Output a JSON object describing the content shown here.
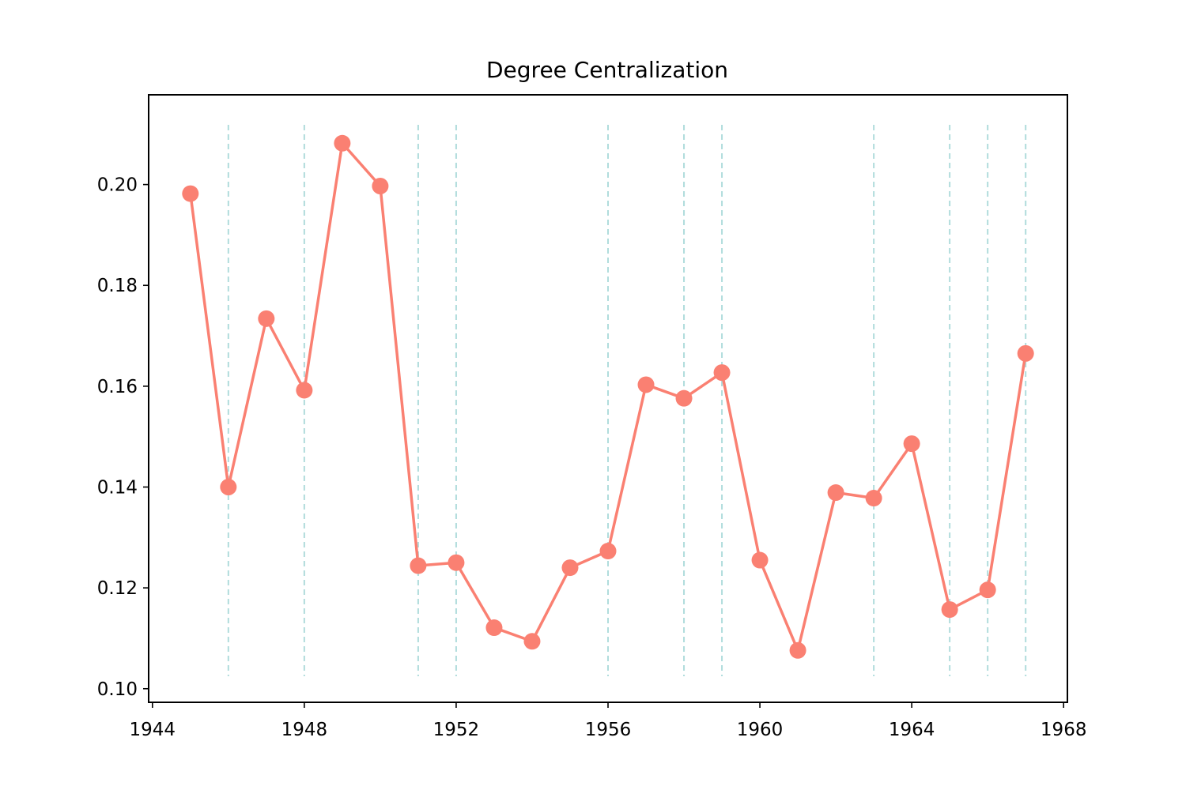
{
  "chart_data": {
    "type": "line",
    "title": "Degree Centralization",
    "xlabel": "",
    "ylabel": "",
    "xlim": [
      1943.9,
      1968.1
    ],
    "ylim": [
      0.0973,
      0.2178
    ],
    "xticks": [
      1944,
      1948,
      1952,
      1956,
      1960,
      1964,
      1968
    ],
    "yticks": [
      0.1,
      0.12,
      0.14,
      0.16,
      0.18,
      0.2
    ],
    "ytick_labels": [
      "0.10",
      "0.12",
      "0.14",
      "0.16",
      "0.18",
      "0.20"
    ],
    "grid": false,
    "legend": "none",
    "series": [
      {
        "x": [
          1945,
          1946,
          1947,
          1948,
          1949,
          1950,
          1951,
          1952,
          1953,
          1954,
          1955,
          1956,
          1957,
          1958,
          1959,
          1960,
          1961,
          1962,
          1963,
          1964,
          1965,
          1966,
          1967
        ],
        "values": [
          0.1982,
          0.14,
          0.1734,
          0.1592,
          0.2082,
          0.1997,
          0.1244,
          0.125,
          0.1121,
          0.1094,
          0.124,
          0.1273,
          0.1603,
          0.1576,
          0.1627,
          0.1255,
          0.1076,
          0.1389,
          0.1378,
          0.1486,
          0.1157,
          0.1196,
          0.1665
        ],
        "color": "#fa8072"
      }
    ],
    "reference_lines": {
      "x": [
        1946,
        1948,
        1951,
        1952,
        1956,
        1958,
        1959,
        1963,
        1965,
        1966,
        1967
      ],
      "color": "#b0dcdc",
      "style": "dashed"
    }
  }
}
